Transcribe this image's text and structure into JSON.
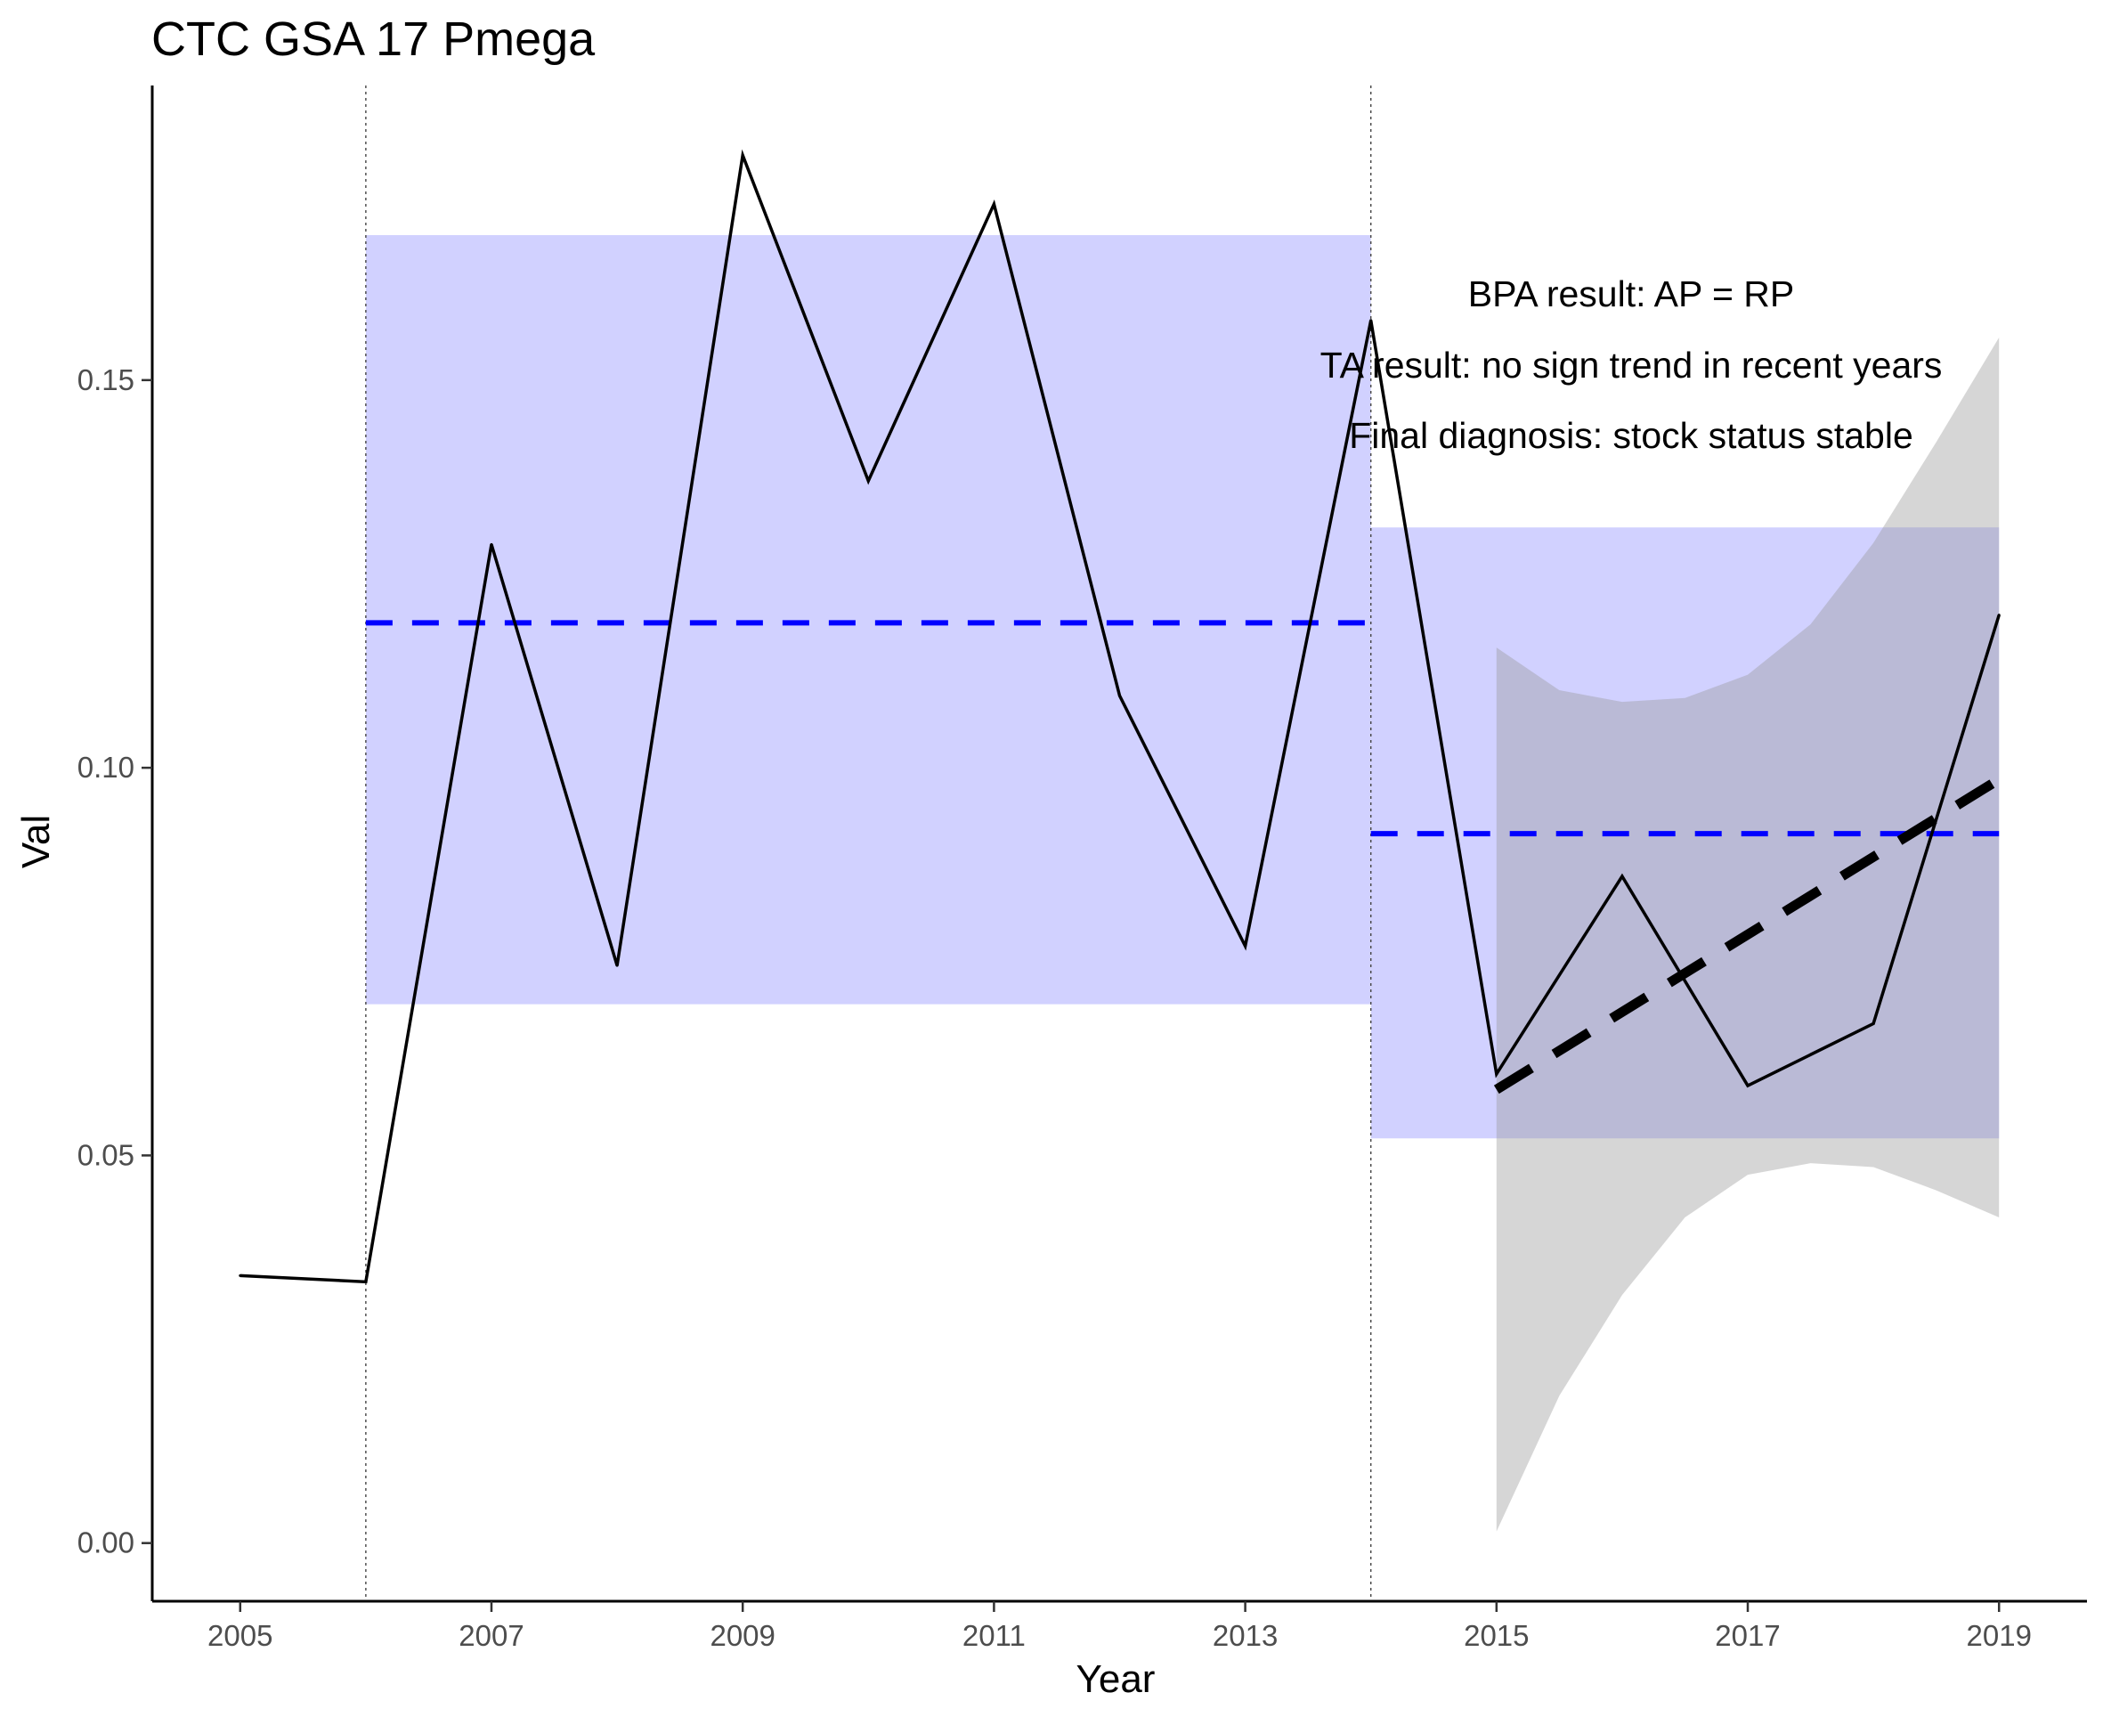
{
  "chart_data": {
    "type": "line",
    "title": "CTC GSA 17 Pmega",
    "xlabel": "Year",
    "ylabel": "Val",
    "xlim": [
      2004.3,
      2019.7
    ],
    "ylim": [
      -0.0075,
      0.188
    ],
    "x_ticks": [
      2005,
      2007,
      2009,
      2011,
      2013,
      2015,
      2017,
      2019
    ],
    "y_ticks": [
      0.0,
      0.05,
      0.1,
      0.15
    ],
    "y_tick_labels": [
      "0.00",
      "0.05",
      "0.10",
      "0.15"
    ],
    "grid": false,
    "series": [
      {
        "x": [
          2005,
          2006,
          2007,
          2008,
          2009,
          2010,
          2011,
          2012,
          2013,
          2014,
          2015,
          2016,
          2017,
          2018,
          2019
        ],
        "y": [
          0.0345,
          0.0337,
          0.1288,
          0.0745,
          0.179,
          0.137,
          0.1727,
          0.1093,
          0.077,
          0.1577,
          0.0605,
          0.086,
          0.059,
          0.067,
          0.1197
        ],
        "color": "#000000"
      }
    ],
    "vertical_lines": [
      2006,
      2014
    ],
    "reference_periods": [
      {
        "x_start": 2006,
        "x_end": 2014,
        "mean": 0.1187,
        "band_low": 0.0695,
        "band_high": 0.1687,
        "color": "#0000ff"
      },
      {
        "x_start": 2014,
        "x_end": 2019,
        "mean": 0.0915,
        "band_low": 0.0522,
        "band_high": 0.131,
        "color": "#0000ff"
      }
    ],
    "trend": {
      "x": [
        2015,
        2019
      ],
      "y": [
        0.0585,
        0.0985
      ],
      "ci_x": [
        2015,
        2015.5,
        2016,
        2016.5,
        2017,
        2017.5,
        2018,
        2018.5,
        2019
      ],
      "ci_low": [
        0.0015,
        0.019,
        0.032,
        0.042,
        0.0475,
        0.049,
        0.0485,
        0.0455,
        0.042
      ],
      "ci_high": [
        0.1155,
        0.11,
        0.1085,
        0.109,
        0.112,
        0.1185,
        0.129,
        0.142,
        0.1555
      ],
      "line_color": "#000000",
      "ci_color": "#999999"
    },
    "annotations": [
      "BPA result: AP = RP",
      "TA result: no sign trend in recent years",
      "Final diagnosis: stock status stable"
    ]
  }
}
